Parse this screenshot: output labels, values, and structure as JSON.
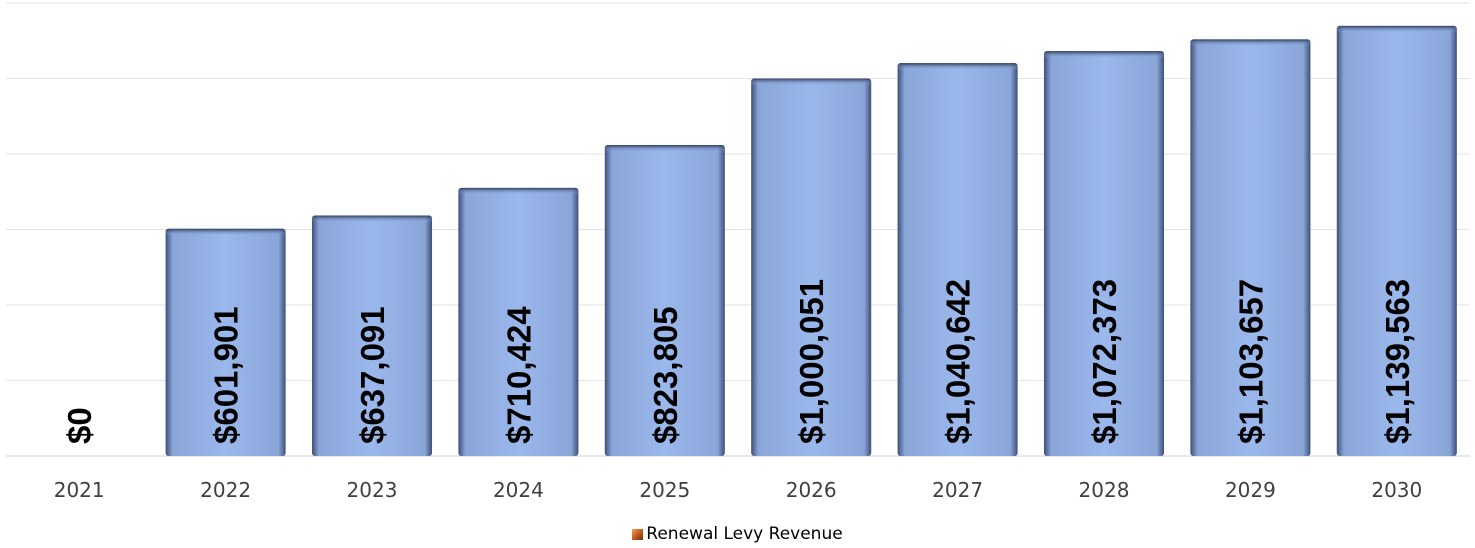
{
  "chart_data": {
    "type": "bar",
    "categories": [
      "2021",
      "2022",
      "2023",
      "2024",
      "2025",
      "2026",
      "2027",
      "2028",
      "2029",
      "2030"
    ],
    "series": [
      {
        "name": "Renewal Levy Revenue",
        "values": [
          0,
          601901,
          637091,
          710424,
          823805,
          1000051,
          1040642,
          1072373,
          1103657,
          1139563
        ],
        "data_labels": [
          "$0",
          "$601,901",
          "$637,091",
          "$710,424",
          "$823,805",
          "$1,000,051",
          "$1,040,642",
          "$1,072,373",
          "$1,103,657",
          "$1,139,563"
        ]
      }
    ],
    "ylim": [
      0,
      1200000
    ],
    "grid": true,
    "legend_position": "bottom",
    "bar_color": "#95b3e9",
    "legend_swatch_color": "#c0551c"
  }
}
